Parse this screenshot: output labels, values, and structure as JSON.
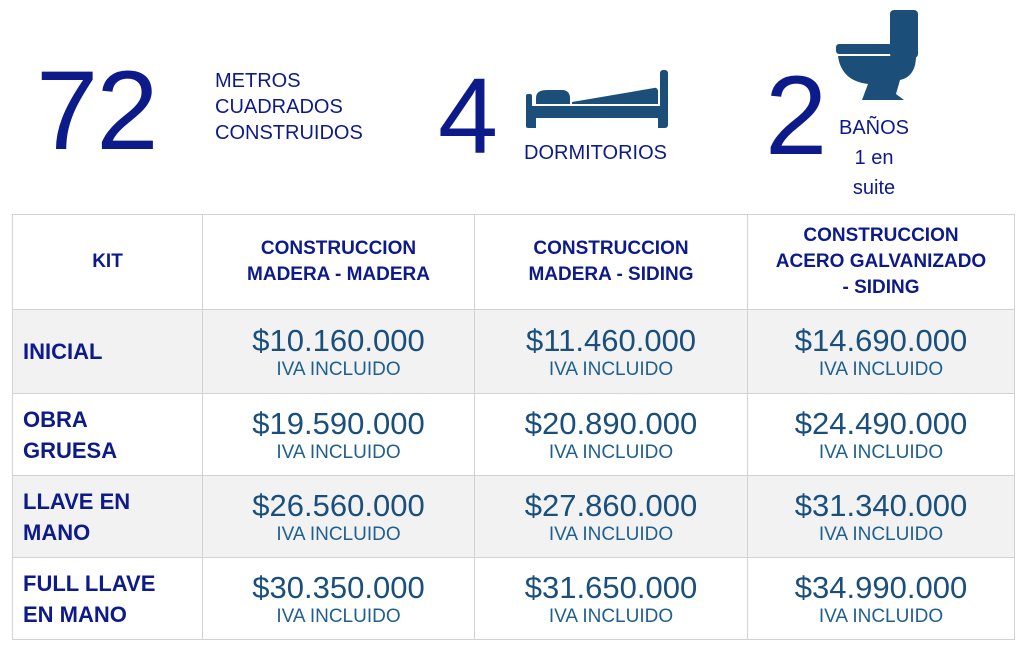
{
  "stats": {
    "area": {
      "number": "72",
      "label_lines": [
        "METROS",
        "CUADRADOS",
        "CONSTRUIDOS"
      ],
      "icon": "none"
    },
    "bedrooms": {
      "number": "4",
      "label": "DORMITORIOS",
      "icon": "bed-icon"
    },
    "bathrooms": {
      "number": "2",
      "label_lines": [
        "BAÑOS",
        "1 en",
        "suite"
      ],
      "icon": "toilet-icon"
    }
  },
  "table": {
    "headers": [
      [
        "KIT"
      ],
      [
        "CONSTRUCCION",
        "MADERA - MADERA"
      ],
      [
        "CONSTRUCCION",
        "MADERA - SIDING"
      ],
      [
        "CONSTRUCCION",
        "ACERO GALVANIZADO",
        "- SIDING"
      ]
    ],
    "rows": [
      {
        "label_lines": [
          "INICIAL"
        ],
        "prices": [
          "$10.160.000",
          "$11.460.000",
          "$14.690.000"
        ],
        "note": "IVA INCLUIDO"
      },
      {
        "label_lines": [
          "OBRA",
          "GRUESA"
        ],
        "prices": [
          "$19.590.000",
          "$20.890.000",
          "$24.490.000"
        ],
        "note": "IVA INCLUIDO"
      },
      {
        "label_lines": [
          "LLAVE EN",
          "MANO"
        ],
        "prices": [
          "$26.560.000",
          "$27.860.000",
          "$31.340.000"
        ],
        "note": "IVA INCLUIDO"
      },
      {
        "label_lines": [
          "FULL LLAVE",
          "EN MANO"
        ],
        "prices": [
          "$30.350.000",
          "$31.650.000",
          "$34.990.000"
        ],
        "note": "IVA INCLUIDO"
      }
    ]
  },
  "colors": {
    "accent": "#0d1a8a",
    "price": "#1a4f7d",
    "icon": "#1b4f7a",
    "row_shade": "#f2f2f2"
  }
}
